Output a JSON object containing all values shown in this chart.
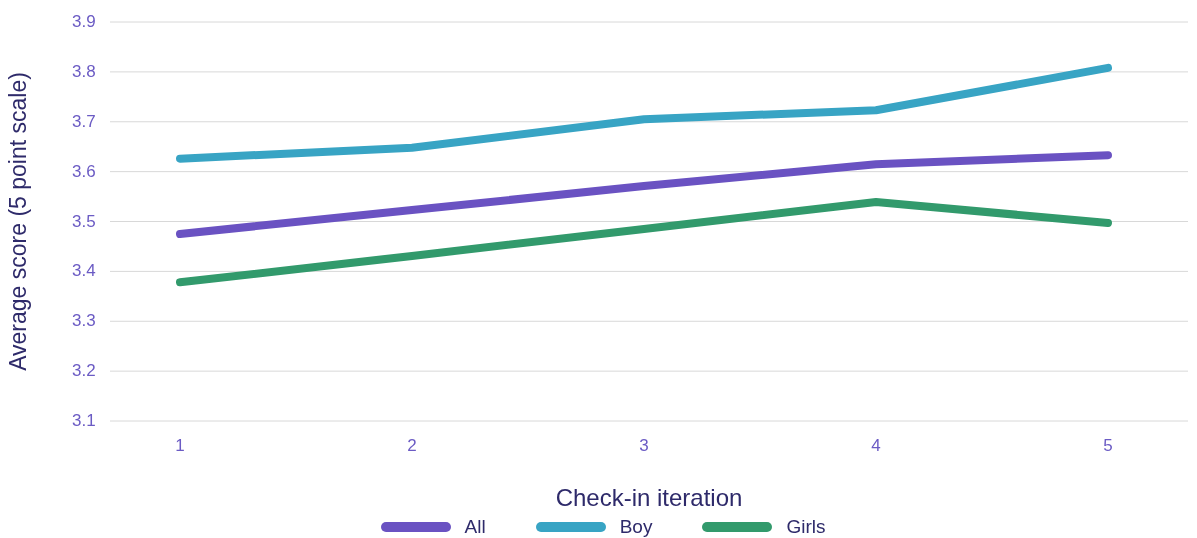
{
  "chart_data": {
    "type": "line",
    "xlabel": "Check-in  iteration",
    "ylabel": "Average score (5 point scale)",
    "categories": [
      "1",
      "2",
      "3",
      "4",
      "5"
    ],
    "series": [
      {
        "name": "All",
        "color": "#6a52c2",
        "values": [
          3.475,
          3.523,
          3.571,
          3.615,
          3.633
        ]
      },
      {
        "name": "Boy",
        "color": "#38a4c4",
        "values": [
          3.626,
          3.648,
          3.705,
          3.723,
          3.808
        ]
      },
      {
        "name": "Girls",
        "color": "#329a6c",
        "values": [
          3.378,
          3.431,
          3.485,
          3.539,
          3.497
        ]
      }
    ],
    "ylim": [
      3.1,
      3.9
    ],
    "yticks": [
      3.1,
      3.2,
      3.3,
      3.4,
      3.5,
      3.6,
      3.7,
      3.8,
      3.9
    ],
    "grid": "y",
    "legend": "bottom",
    "marker": "none",
    "line_style": "solid"
  }
}
